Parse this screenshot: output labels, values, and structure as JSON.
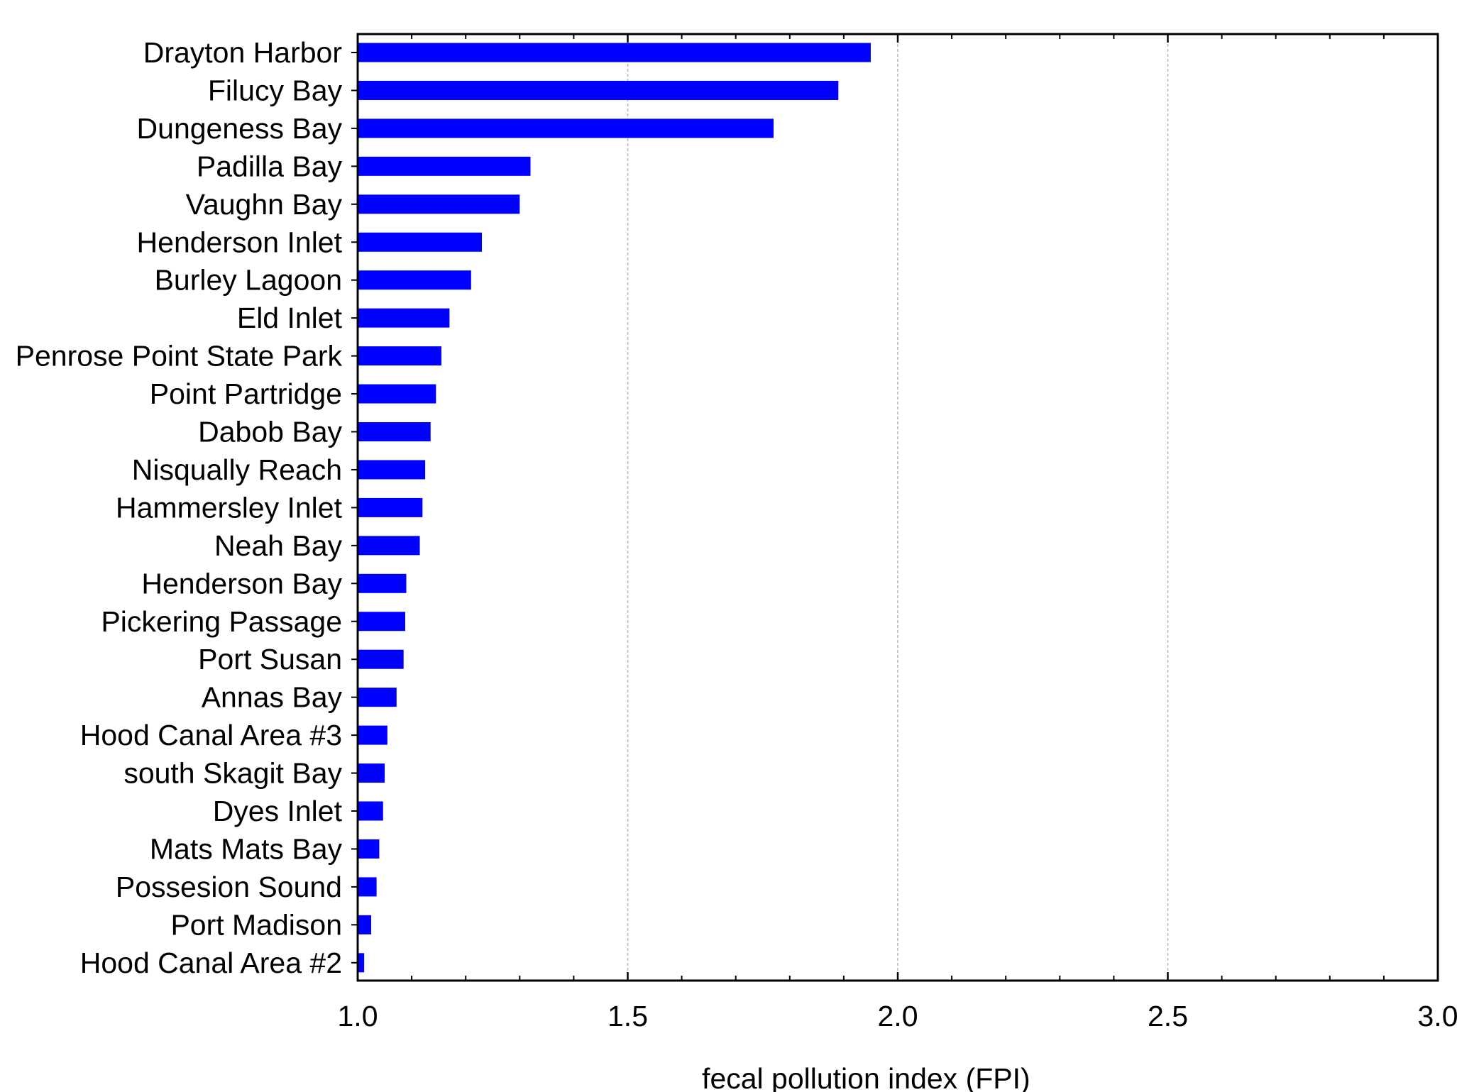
{
  "chart_data": {
    "type": "bar",
    "orientation": "horizontal",
    "title": "",
    "xlabel": "fecal pollution index (FPI)",
    "ylabel": "",
    "xlim": [
      1.0,
      3.0
    ],
    "xticks": [
      "1.0",
      "1.5",
      "2.0",
      "2.5",
      "3.0"
    ],
    "grid": "vertical dashed",
    "legend": "none",
    "bar_color": "#0000ff",
    "categories": [
      "Drayton Harbor",
      "Filucy Bay",
      "Dungeness Bay",
      "Padilla Bay",
      "Vaughn Bay",
      "Henderson Inlet",
      "Burley Lagoon",
      "Eld Inlet",
      "Penrose Point State Park",
      "Point Partridge",
      "Dabob Bay",
      "Nisqually Reach",
      "Hammersley Inlet",
      "Neah Bay",
      "Henderson Bay",
      "Pickering Passage",
      "Port Susan",
      "Annas Bay",
      "Hood Canal Area #3",
      "south Skagit Bay",
      "Dyes Inlet",
      "Mats Mats Bay",
      "Possesion Sound",
      "Port Madison",
      "Hood Canal Area #2"
    ],
    "values": [
      1.95,
      1.89,
      1.77,
      1.32,
      1.3,
      1.23,
      1.21,
      1.17,
      1.155,
      1.145,
      1.135,
      1.125,
      1.12,
      1.115,
      1.09,
      1.088,
      1.085,
      1.072,
      1.055,
      1.05,
      1.047,
      1.04,
      1.035,
      1.025,
      1.012
    ]
  }
}
